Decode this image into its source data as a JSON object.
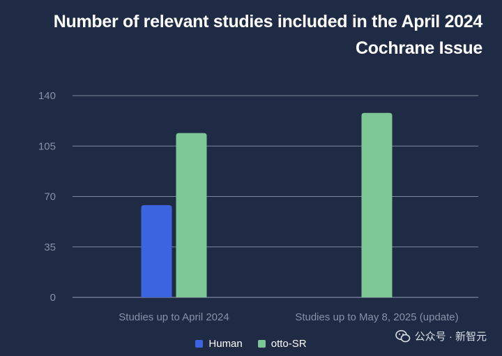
{
  "chart_data": {
    "type": "bar",
    "title_lines": [
      "Number of relevant studies included in the April 2024",
      "Cochrane Issue"
    ],
    "categories": [
      "Studies up to April 2024",
      "Studies up to May 8, 2025 (update)"
    ],
    "series": [
      {
        "name": "Human",
        "color": "#3d64e0",
        "values": [
          64,
          null
        ]
      },
      {
        "name": "otto-SR",
        "color": "#7dc896",
        "values": [
          114,
          128
        ]
      }
    ],
    "yticks": [
      0,
      35,
      70,
      105,
      140
    ],
    "ylim": [
      0,
      140
    ],
    "grid": true,
    "legend_position": "bottom"
  },
  "watermark": {
    "text": "公众号 · 新智元",
    "icon": "wechat-icon"
  }
}
